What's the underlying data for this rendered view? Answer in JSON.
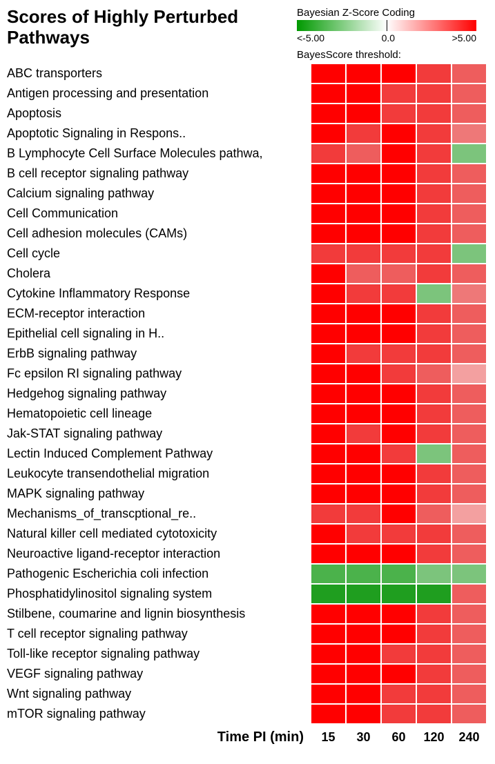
{
  "title_line1": "Scores of Highly Perturbed",
  "title_line2": "Pathways",
  "legend": {
    "title": "Bayesian Z-Score Coding",
    "left": "<-5.00",
    "mid": "0.0",
    "right": ">5.00",
    "colors": {
      "low": "#009900",
      "mid": "#ffffff",
      "high": "#ff0000"
    }
  },
  "subtitle": "BayesScore threshold:",
  "xaxis": {
    "label": "Time PI  (min)",
    "ticks": [
      "15",
      "30",
      "60",
      "120",
      "240"
    ]
  },
  "palette": {
    "r5": "#ff0000",
    "r4": "#f23b3b",
    "r3": "#ee5d5d",
    "r2": "#ee7878",
    "r1": "#f3a0a0",
    "w": "#f7dcdc",
    "g3": "#7cc47c",
    "g4": "#4bb24b",
    "g5": "#1f9e1f"
  },
  "rows": [
    {
      "label": "ABC transporters",
      "cells": [
        "r5",
        "r5",
        "r5",
        "r4",
        "r3"
      ]
    },
    {
      "label": "Antigen processing and presentation",
      "cells": [
        "r5",
        "r5",
        "r4",
        "r4",
        "r3"
      ]
    },
    {
      "label": "Apoptosis",
      "cells": [
        "r5",
        "r5",
        "r4",
        "r4",
        "r3"
      ]
    },
    {
      "label": "Apoptotic Signaling in Respons..",
      "cells": [
        "r5",
        "r4",
        "r5",
        "r4",
        "r2"
      ]
    },
    {
      "label": "B Lymphocyte Cell Surface Molecules pathwa,",
      "cells": [
        "r4",
        "r3",
        "r5",
        "r4",
        "g3"
      ]
    },
    {
      "label": "B cell receptor signaling pathway",
      "cells": [
        "r5",
        "r5",
        "r5",
        "r4",
        "r3"
      ]
    },
    {
      "label": "Calcium signaling pathway",
      "cells": [
        "r5",
        "r5",
        "r5",
        "r4",
        "r3"
      ]
    },
    {
      "label": "Cell Communication",
      "cells": [
        "r5",
        "r5",
        "r5",
        "r4",
        "r3"
      ]
    },
    {
      "label": "Cell adhesion molecules (CAMs)",
      "cells": [
        "r5",
        "r5",
        "r5",
        "r4",
        "r3"
      ]
    },
    {
      "label": "Cell cycle",
      "cells": [
        "r4",
        "r4",
        "r4",
        "r4",
        "g3"
      ]
    },
    {
      "label": "Cholera",
      "cells": [
        "r5",
        "r3",
        "r3",
        "r4",
        "r3"
      ]
    },
    {
      "label": "Cytokine Inflammatory Response",
      "cells": [
        "r5",
        "r4",
        "r4",
        "g3",
        "r2"
      ]
    },
    {
      "label": "ECM-receptor interaction",
      "cells": [
        "r5",
        "r5",
        "r5",
        "r4",
        "r3"
      ]
    },
    {
      "label": "Epithelial cell signaling in H..",
      "cells": [
        "r5",
        "r5",
        "r5",
        "r4",
        "r3"
      ]
    },
    {
      "label": "ErbB signaling pathway",
      "cells": [
        "r5",
        "r4",
        "r4",
        "r4",
        "r3"
      ]
    },
    {
      "label": "Fc epsilon RI signaling pathway",
      "cells": [
        "r5",
        "r5",
        "r4",
        "r3",
        "r1"
      ]
    },
    {
      "label": "Hedgehog signaling pathway",
      "cells": [
        "r5",
        "r5",
        "r5",
        "r4",
        "r3"
      ]
    },
    {
      "label": "Hematopoietic cell lineage",
      "cells": [
        "r5",
        "r5",
        "r5",
        "r4",
        "r3"
      ]
    },
    {
      "label": "Jak-STAT signaling pathway",
      "cells": [
        "r5",
        "r4",
        "r5",
        "r4",
        "r3"
      ]
    },
    {
      "label": "Lectin Induced Complement Pathway",
      "cells": [
        "r5",
        "r5",
        "r4",
        "g3",
        "r3"
      ]
    },
    {
      "label": "Leukocyte transendothelial migration",
      "cells": [
        "r5",
        "r5",
        "r5",
        "r4",
        "r3"
      ]
    },
    {
      "label": "MAPK signaling pathway",
      "cells": [
        "r5",
        "r5",
        "r5",
        "r4",
        "r3"
      ]
    },
    {
      "label": "Mechanisms_of_transcptional_re..",
      "cells": [
        "r4",
        "r4",
        "r5",
        "r3",
        "r1"
      ]
    },
    {
      "label": "Natural killer cell mediated cytotoxicity",
      "cells": [
        "r5",
        "r4",
        "r4",
        "r4",
        "r3"
      ]
    },
    {
      "label": "Neuroactive ligand-receptor interaction",
      "cells": [
        "r5",
        "r5",
        "r5",
        "r4",
        "r3"
      ]
    },
    {
      "label": "Pathogenic Escherichia coli infection",
      "cells": [
        "g4",
        "g4",
        "g4",
        "g3",
        "g3"
      ]
    },
    {
      "label": "Phosphatidylinositol signaling system",
      "cells": [
        "g5",
        "g5",
        "g5",
        "g5",
        "r3"
      ]
    },
    {
      "label": "Stilbene, coumarine and lignin biosynthesis",
      "cells": [
        "r5",
        "r5",
        "r5",
        "r4",
        "r3"
      ]
    },
    {
      "label": "T cell receptor signaling pathway",
      "cells": [
        "r5",
        "r5",
        "r5",
        "r4",
        "r3"
      ]
    },
    {
      "label": "Toll-like receptor signaling pathway",
      "cells": [
        "r5",
        "r5",
        "r4",
        "r4",
        "r3"
      ]
    },
    {
      "label": "VEGF signaling pathway",
      "cells": [
        "r5",
        "r5",
        "r5",
        "r4",
        "r3"
      ]
    },
    {
      "label": "Wnt signaling pathway",
      "cells": [
        "r5",
        "r5",
        "r4",
        "r4",
        "r3"
      ]
    },
    {
      "label": "mTOR signaling pathway",
      "cells": [
        "r5",
        "r5",
        "r4",
        "r4",
        "r3"
      ]
    }
  ]
}
